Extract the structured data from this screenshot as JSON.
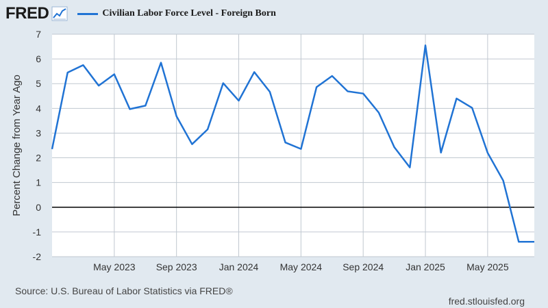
{
  "brand": {
    "name": "FRED",
    "icon": "trend-line-icon"
  },
  "chart_data": {
    "type": "line",
    "title": "",
    "xlabel": "",
    "ylabel": "Percent Change from Year Ago",
    "ylim": [
      -2,
      7
    ],
    "yticks": [
      -2,
      -1,
      0,
      1,
      2,
      3,
      4,
      5,
      6,
      7
    ],
    "ytick_labels": [
      "-2",
      "-1",
      "0",
      "1",
      "2",
      "3",
      "4",
      "5",
      "6",
      "7"
    ],
    "grid": true,
    "legend_position": "top",
    "xlim": [
      "2023-01",
      "2025-08"
    ],
    "xticks": [
      "2023-05",
      "2023-09",
      "2024-01",
      "2024-05",
      "2024-09",
      "2025-01",
      "2025-05"
    ],
    "xtick_labels": [
      "May 2023",
      "Sep 2023",
      "Jan 2024",
      "May 2024",
      "Sep 2024",
      "Jan 2025",
      "May 2025"
    ],
    "x": [
      "2023-01",
      "2023-02",
      "2023-03",
      "2023-04",
      "2023-05",
      "2023-06",
      "2023-07",
      "2023-08",
      "2023-09",
      "2023-10",
      "2023-11",
      "2023-12",
      "2024-01",
      "2024-02",
      "2024-03",
      "2024-04",
      "2024-05",
      "2024-06",
      "2024-07",
      "2024-08",
      "2024-09",
      "2024-10",
      "2024-11",
      "2024-12",
      "2025-01",
      "2025-02",
      "2025-03",
      "2025-04",
      "2025-05",
      "2025-06",
      "2025-07",
      "2025-08"
    ],
    "series": [
      {
        "name": "Civilian Labor Force Level - Foreign Born",
        "color": "#2073d4",
        "values": [
          2.35,
          5.45,
          5.75,
          4.92,
          5.38,
          3.97,
          4.11,
          5.85,
          3.68,
          2.55,
          3.15,
          5.02,
          4.31,
          5.47,
          4.67,
          2.62,
          2.36,
          4.86,
          5.31,
          4.69,
          4.6,
          3.83,
          2.43,
          1.61,
          6.55,
          2.21,
          4.4,
          4.02,
          2.2,
          1.08,
          -1.4,
          -1.4
        ]
      }
    ],
    "zero_line": 0
  },
  "footer": {
    "source": "Source: U.S. Bureau of Labor Statistics via FRED®",
    "site": "fred.stlouisfed.org"
  },
  "colors": {
    "background": "#e1e9f0",
    "plot_background": "#ffffff",
    "grid": "#c0c8d0",
    "zero_line": "#000000"
  }
}
